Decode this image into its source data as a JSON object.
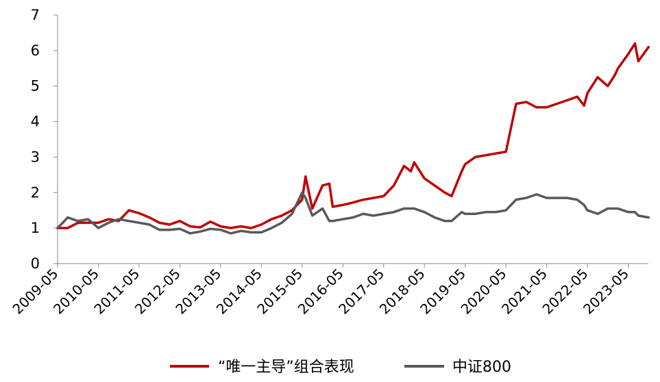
{
  "chart_data": {
    "type": "line",
    "title": "",
    "xlabel": "",
    "ylabel": "",
    "ylim": [
      0,
      7
    ],
    "yticks": [
      "0",
      "1",
      "2",
      "3",
      "4",
      "5",
      "6",
      "7"
    ],
    "xticks": [
      "2009-05",
      "2010-05",
      "2011-05",
      "2012-05",
      "2013-05",
      "2014-05",
      "2015-05",
      "2016-05",
      "2017-05",
      "2018-05",
      "2019-05",
      "2020-05",
      "2021-05",
      "2022-05",
      "2023-05"
    ],
    "grid": false,
    "legend_position": "bottom-center",
    "x_points": [
      "2009-05",
      "2009-08",
      "2009-11",
      "2010-02",
      "2010-05",
      "2010-08",
      "2010-11",
      "2011-02",
      "2011-05",
      "2011-08",
      "2011-11",
      "2012-02",
      "2012-05",
      "2012-08",
      "2012-11",
      "2013-02",
      "2013-05",
      "2013-08",
      "2013-11",
      "2014-02",
      "2014-05",
      "2014-08",
      "2014-11",
      "2015-02",
      "2015-05",
      "2015-06",
      "2015-08",
      "2015-11",
      "2016-01",
      "2016-02",
      "2016-05",
      "2016-08",
      "2016-11",
      "2017-02",
      "2017-05",
      "2017-08",
      "2017-11",
      "2018-01",
      "2018-02",
      "2018-05",
      "2018-08",
      "2018-11",
      "2019-01",
      "2019-04",
      "2019-05",
      "2019-08",
      "2019-11",
      "2020-02",
      "2020-05",
      "2020-08",
      "2020-11",
      "2021-02",
      "2021-05",
      "2021-08",
      "2021-11",
      "2022-02",
      "2022-04",
      "2022-05",
      "2022-08",
      "2022-11",
      "2023-01",
      "2023-02",
      "2023-05",
      "2023-07",
      "2023-08",
      "2023-11"
    ],
    "series": [
      {
        "name": "“唯一主导”组合表现",
        "color": "#c00000",
        "values": [
          1.0,
          1.0,
          1.15,
          1.15,
          1.15,
          1.25,
          1.2,
          1.5,
          1.42,
          1.3,
          1.15,
          1.1,
          1.2,
          1.05,
          1.02,
          1.18,
          1.05,
          1.0,
          1.05,
          1.0,
          1.1,
          1.25,
          1.35,
          1.5,
          1.8,
          2.45,
          1.55,
          2.2,
          2.25,
          1.6,
          1.65,
          1.72,
          1.8,
          1.85,
          1.9,
          2.2,
          2.75,
          2.6,
          2.85,
          2.4,
          2.2,
          2.0,
          1.9,
          2.6,
          2.8,
          3.0,
          3.05,
          3.1,
          3.15,
          4.5,
          4.55,
          4.4,
          4.4,
          4.5,
          4.6,
          4.7,
          4.45,
          4.8,
          5.25,
          5.0,
          5.3,
          5.5,
          5.9,
          6.2,
          5.7,
          6.1
        ]
      },
      {
        "name": "中证800",
        "color": "#595959",
        "values": [
          1.0,
          1.3,
          1.2,
          1.25,
          1.0,
          1.15,
          1.25,
          1.2,
          1.15,
          1.1,
          0.95,
          0.95,
          0.98,
          0.85,
          0.9,
          0.98,
          0.95,
          0.85,
          0.92,
          0.88,
          0.88,
          1.0,
          1.15,
          1.4,
          2.0,
          1.85,
          1.35,
          1.55,
          1.2,
          1.2,
          1.25,
          1.3,
          1.4,
          1.35,
          1.4,
          1.45,
          1.55,
          1.55,
          1.55,
          1.45,
          1.3,
          1.2,
          1.2,
          1.45,
          1.4,
          1.4,
          1.45,
          1.45,
          1.5,
          1.8,
          1.85,
          1.95,
          1.85,
          1.85,
          1.85,
          1.8,
          1.65,
          1.5,
          1.4,
          1.55,
          1.55,
          1.55,
          1.45,
          1.45,
          1.35,
          1.3
        ]
      }
    ]
  }
}
